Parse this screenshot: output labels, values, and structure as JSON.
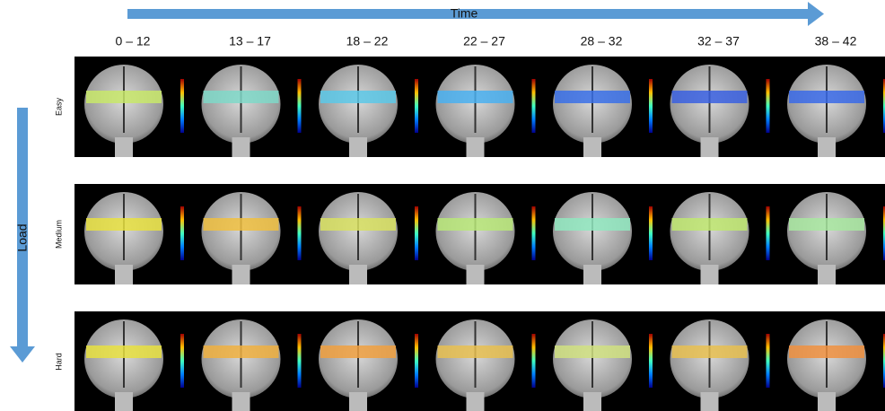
{
  "time_label": "Time",
  "load_label": "Load",
  "columns": [
    "0 – 12",
    "13 – 17",
    "18 – 22",
    "22 – 27",
    "28 – 32",
    "32 – 37",
    "38 – 42"
  ],
  "rows": [
    "Easy",
    "Medium",
    "Hard"
  ]
}
